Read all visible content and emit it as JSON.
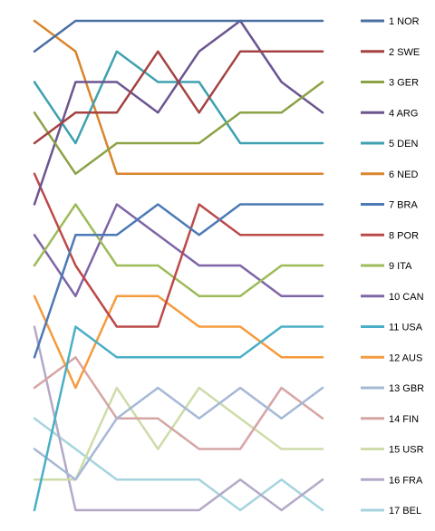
{
  "chart_data": {
    "type": "line",
    "title": "",
    "xlabel": "",
    "ylabel": "",
    "x": [
      1,
      2,
      3,
      4,
      5,
      6,
      7,
      8
    ],
    "ylim": [
      1,
      17
    ],
    "y_inverted": true,
    "grid": false,
    "legend_placement": "right",
    "series": [
      {
        "name": "1 NOR",
        "color": "#4A6FA1",
        "values": [
          2,
          1,
          1,
          1,
          1,
          1,
          1,
          1
        ]
      },
      {
        "name": "2 SWE",
        "color": "#A54242",
        "values": [
          5,
          4,
          4,
          2,
          4,
          2,
          2,
          2
        ]
      },
      {
        "name": "3 GER",
        "color": "#8BA246",
        "values": [
          4,
          6,
          5,
          5,
          5,
          4,
          4,
          3
        ]
      },
      {
        "name": "4 ARG",
        "color": "#6B558F",
        "values": [
          7,
          3,
          3,
          4,
          2,
          1,
          3,
          4
        ]
      },
      {
        "name": "5 DEN",
        "color": "#3FA1AF",
        "values": [
          3,
          5,
          2,
          3,
          3,
          5,
          5,
          5
        ]
      },
      {
        "name": "6 NED",
        "color": "#D9852D",
        "values": [
          1,
          2,
          6,
          6,
          6,
          6,
          6,
          6
        ]
      },
      {
        "name": "7 BRA",
        "color": "#4C7AB6",
        "values": [
          12,
          8,
          8,
          7,
          8,
          7,
          7,
          7
        ]
      },
      {
        "name": "8 POR",
        "color": "#BC4A4A",
        "values": [
          6,
          9,
          11,
          11,
          7,
          8,
          8,
          8
        ]
      },
      {
        "name": "9 ITA",
        "color": "#9DBB59",
        "values": [
          9,
          7,
          9,
          9,
          10,
          10,
          9,
          9
        ]
      },
      {
        "name": "10 CAN",
        "color": "#7E65A6",
        "values": [
          8,
          10,
          7,
          8,
          9,
          9,
          10,
          10
        ]
      },
      {
        "name": "11 USA",
        "color": "#4AAFC6",
        "values": [
          17,
          11,
          12,
          12,
          12,
          12,
          11,
          11
        ]
      },
      {
        "name": "12 AUS",
        "color": "#F59B3F",
        "values": [
          10,
          13,
          10,
          10,
          11,
          11,
          12,
          12
        ]
      },
      {
        "name": "13 GBR",
        "color": "#A5B8D6",
        "values": [
          15,
          16,
          14,
          13,
          14,
          13,
          14,
          13
        ]
      },
      {
        "name": "14 FIN",
        "color": "#D6A5A5",
        "values": [
          13,
          12,
          14,
          14,
          15,
          15,
          13,
          14
        ]
      },
      {
        "name": "15 USR",
        "color": "#CDDCA9",
        "values": [
          16,
          16,
          13,
          15,
          13,
          14,
          15,
          15
        ]
      },
      {
        "name": "16 FRA",
        "color": "#B4A8C7",
        "values": [
          11,
          17,
          17,
          17,
          17,
          16,
          17,
          16
        ]
      },
      {
        "name": "17 BEL",
        "color": "#A6D4DE",
        "values": [
          14,
          15,
          16,
          16,
          16,
          17,
          16,
          17
        ]
      }
    ]
  }
}
